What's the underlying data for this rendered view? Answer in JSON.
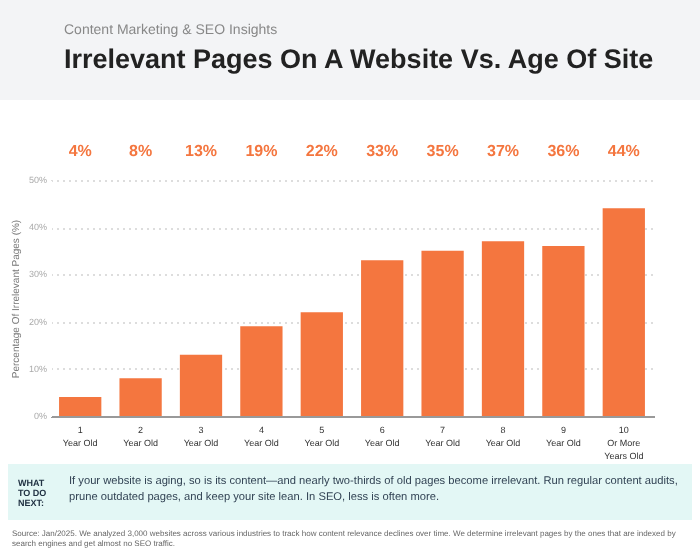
{
  "chart_data": {
    "type": "bar",
    "subtitle": "Content Marketing & SEO Insights",
    "title": "Irrelevant Pages On A Website Vs. Age Of Site",
    "ylabel": "Percentage Of Irrelevant Pages (%)",
    "categories": [
      "1 Year Old",
      "2 Year Old",
      "3 Year Old",
      "4 Year Old",
      "5 Year Old",
      "6 Year Old",
      "7 Year Old",
      "8 Year Old",
      "9 Year Old",
      "10 Or More Years Old"
    ],
    "values": [
      4,
      8,
      13,
      19,
      22,
      33,
      35,
      37,
      36,
      44
    ],
    "value_labels": [
      "4%",
      "8%",
      "13%",
      "19%",
      "22%",
      "33%",
      "35%",
      "37%",
      "36%",
      "44%"
    ],
    "color": "#f4763f",
    "ylim": [
      0,
      50
    ],
    "yticks": [
      {
        "value": 0,
        "label": "0%"
      },
      {
        "value": 10,
        "label": "10%"
      },
      {
        "value": 20,
        "label": "20%"
      },
      {
        "value": 30,
        "label": "30%"
      },
      {
        "value": 40,
        "label": "40%"
      },
      {
        "value": 50,
        "label": "50%"
      }
    ],
    "grid": "y",
    "annotations": [
      "WHAT TO DO NEXT:",
      "If your website is aging, so is its content—and nearly two-thirds of old pages become irrelevant. Run regular content audits, prune outdated pages, and keep your site lean. In SEO, less is often more.",
      "Source: Jan/2025. We analyzed 3,000 websites across various industries to track how content relevance declines over time. We determine irrelevant pages by the ones that are indexed by search engines and get almost no SEO traffic."
    ]
  }
}
